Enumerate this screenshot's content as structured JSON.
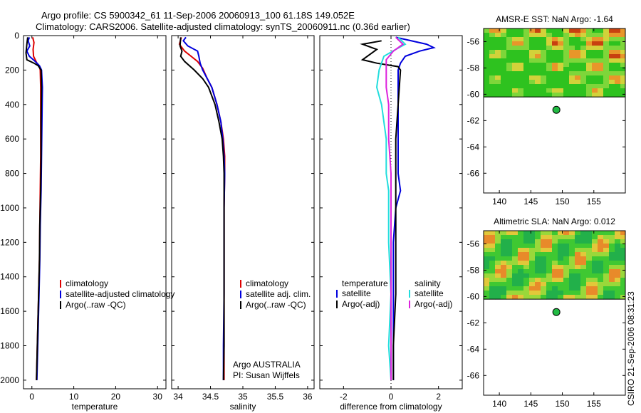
{
  "header": {
    "line1": "Argo profile: CS 5900342_61 11-Sep-2006 20060913_100 61.18S 149.052E",
    "line2": "Climatology: CARS2006. Satellite-adjusted climatology: synTS_20060911.nc (0.36d earlier)"
  },
  "footer_stamp": "CSIRO 21-Sep-2006 08:31:23",
  "colors": {
    "red": "#dd0000",
    "blue": "#0000dd",
    "black": "#000000",
    "cyan": "#22dddd",
    "magenta": "#dd22dd"
  },
  "chart_data": [
    {
      "type": "line",
      "xlabel": "temperature",
      "ylabel": "",
      "xlim": [
        -2,
        32
      ],
      "ylim": [
        2050,
        0
      ],
      "x_ticks": [
        "0",
        "10",
        "20",
        "30"
      ],
      "y_ticks": [
        "0",
        "200",
        "400",
        "600",
        "800",
        "1000",
        "1200",
        "1400",
        "1600",
        "1800",
        "2000"
      ],
      "legend": [
        "climatology",
        "satellite-adjusted climatology",
        "Argo(..raw -QC)"
      ],
      "legend_placement": "lower-right",
      "series": [
        {
          "name": "climatology",
          "color": "red",
          "points": [
            [
              0.2,
              10
            ],
            [
              0.5,
              40
            ],
            [
              0.3,
              80
            ],
            [
              0.4,
              120
            ],
            [
              1.2,
              160
            ],
            [
              1.8,
              180
            ],
            [
              2.0,
              200
            ],
            [
              2.1,
              300
            ],
            [
              2.1,
              500
            ],
            [
              2.1,
              700
            ],
            [
              2.0,
              900
            ],
            [
              1.9,
              1100
            ],
            [
              1.8,
              1300
            ],
            [
              1.6,
              1500
            ],
            [
              1.4,
              1700
            ],
            [
              1.2,
              1900
            ],
            [
              1.1,
              2000
            ]
          ]
        },
        {
          "name": "satellite-adjusted climatology",
          "color": "blue",
          "points": [
            [
              -0.6,
              10
            ],
            [
              -0.9,
              30
            ],
            [
              -0.5,
              60
            ],
            [
              -1.2,
              90
            ],
            [
              -0.6,
              120
            ],
            [
              0.8,
              150
            ],
            [
              1.8,
              175
            ],
            [
              2.3,
              200
            ],
            [
              2.5,
              300
            ],
            [
              2.4,
              500
            ],
            [
              2.3,
              700
            ],
            [
              2.2,
              900
            ],
            [
              2.0,
              1100
            ],
            [
              1.9,
              1300
            ],
            [
              1.7,
              1500
            ],
            [
              1.5,
              1700
            ],
            [
              1.3,
              1900
            ],
            [
              1.2,
              2000
            ]
          ]
        },
        {
          "name": "Argo(..raw -QC)",
          "color": "black",
          "points": [
            [
              -1.0,
              10
            ],
            [
              -1.2,
              50
            ],
            [
              -1.4,
              100
            ],
            [
              -1.2,
              140
            ],
            [
              0.5,
              160
            ],
            [
              1.5,
              175
            ],
            [
              2.2,
              200
            ],
            [
              2.3,
              300
            ],
            [
              2.2,
              500
            ],
            [
              2.2,
              700
            ],
            [
              2.1,
              900
            ],
            [
              1.9,
              1100
            ],
            [
              1.8,
              1300
            ],
            [
              1.6,
              1500
            ],
            [
              1.4,
              1700
            ],
            [
              1.2,
              1900
            ],
            [
              1.1,
              2000
            ]
          ]
        }
      ]
    },
    {
      "type": "line",
      "xlabel": "salinity",
      "xlim": [
        33.9,
        36.1
      ],
      "ylim": [
        2050,
        0
      ],
      "x_ticks": [
        "34",
        "34.5",
        "35",
        "35.5",
        "36"
      ],
      "legend": [
        "climatology",
        "satellite adj. clim.",
        "Argo(..raw -QC)"
      ],
      "legend_placement": "lower-right",
      "annotation": [
        "Argo AUSTRALIA",
        "PI: Susan Wijffels"
      ],
      "series": [
        {
          "name": "climatology",
          "color": "red",
          "points": [
            [
              34.05,
              10
            ],
            [
              34.02,
              50
            ],
            [
              34.1,
              90
            ],
            [
              34.2,
              120
            ],
            [
              34.3,
              150
            ],
            [
              34.38,
              190
            ],
            [
              34.45,
              250
            ],
            [
              34.52,
              300
            ],
            [
              34.6,
              400
            ],
            [
              34.66,
              500
            ],
            [
              34.7,
              600
            ],
            [
              34.72,
              700
            ],
            [
              34.72,
              800
            ],
            [
              34.71,
              1000
            ],
            [
              34.71,
              1500
            ],
            [
              34.71,
              1800
            ],
            [
              34.71,
              2000
            ]
          ]
        },
        {
          "name": "satellite adj. clim.",
          "color": "blue",
          "points": [
            [
              34.12,
              10
            ],
            [
              34.08,
              30
            ],
            [
              34.15,
              60
            ],
            [
              34.3,
              90
            ],
            [
              34.32,
              120
            ],
            [
              34.34,
              160
            ],
            [
              34.38,
              200
            ],
            [
              34.45,
              250
            ],
            [
              34.52,
              300
            ],
            [
              34.6,
              400
            ],
            [
              34.66,
              500
            ],
            [
              34.69,
              600
            ],
            [
              34.71,
              700
            ],
            [
              34.72,
              800
            ],
            [
              34.71,
              1000
            ],
            [
              34.71,
              1500
            ],
            [
              34.7,
              1800
            ],
            [
              34.7,
              2000
            ]
          ]
        },
        {
          "name": "Argo(..raw -QC)",
          "color": "black",
          "points": [
            [
              34.04,
              10
            ],
            [
              34.03,
              60
            ],
            [
              34.06,
              90
            ],
            [
              34.04,
              120
            ],
            [
              34.1,
              150
            ],
            [
              34.25,
              200
            ],
            [
              34.38,
              250
            ],
            [
              34.47,
              300
            ],
            [
              34.57,
              400
            ],
            [
              34.63,
              500
            ],
            [
              34.68,
              600
            ],
            [
              34.7,
              700
            ],
            [
              34.71,
              800
            ],
            [
              34.71,
              1000
            ],
            [
              34.71,
              1500
            ],
            [
              34.71,
              1800
            ],
            [
              34.7,
              2000
            ]
          ]
        }
      ]
    },
    {
      "type": "line",
      "xlabel": "difference from climatology",
      "xlim": [
        -3,
        3
      ],
      "ylim": [
        2050,
        0
      ],
      "x_ticks": [
        "-2",
        "0",
        "2"
      ],
      "legend": [
        "temperature",
        "satellite",
        "Argo(-adj)",
        "salinity",
        "satellite",
        "Argo(-adj)"
      ],
      "legend_placement": "lower-center",
      "series": [
        {
          "name": "temperature satellite",
          "color": "blue",
          "points": [
            [
              0.2,
              10
            ],
            [
              1.5,
              50
            ],
            [
              1.8,
              70
            ],
            [
              1.2,
              90
            ],
            [
              0.6,
              120
            ],
            [
              0.4,
              160
            ],
            [
              0.3,
              200
            ],
            [
              0.3,
              400
            ],
            [
              0.3,
              600
            ],
            [
              0.3,
              800
            ],
            [
              0.4,
              900
            ],
            [
              0.2,
              1000
            ],
            [
              0.1,
              1200
            ],
            [
              0.1,
              1500
            ],
            [
              0.1,
              1800
            ],
            [
              0.1,
              2000
            ]
          ]
        },
        {
          "name": "temperature Argo(-adj)",
          "color": "black",
          "points": [
            [
              -0.4,
              30
            ],
            [
              -1.2,
              50
            ],
            [
              -0.6,
              80
            ],
            [
              -1.2,
              140
            ],
            [
              -0.6,
              160
            ],
            [
              0.3,
              180
            ],
            [
              0.4,
              200
            ],
            [
              0.3,
              400
            ],
            [
              0.2,
              600
            ],
            [
              0.2,
              800
            ],
            [
              0.2,
              1000
            ],
            [
              0.2,
              1200
            ],
            [
              0.2,
              1500
            ],
            [
              0.1,
              1800
            ],
            [
              0.1,
              2000
            ]
          ]
        },
        {
          "name": "salinity satellite",
          "color": "cyan",
          "points": [
            [
              0.3,
              10
            ],
            [
              0.6,
              50
            ],
            [
              0.2,
              80
            ],
            [
              -0.3,
              120
            ],
            [
              -0.5,
              200
            ],
            [
              -0.6,
              300
            ],
            [
              -0.4,
              400
            ],
            [
              -0.2,
              600
            ],
            [
              -0.2,
              800
            ],
            [
              -0.1,
              900
            ],
            [
              -0.1,
              1200
            ],
            [
              0.0,
              1500
            ],
            [
              -0.1,
              1800
            ],
            [
              0.0,
              2000
            ]
          ]
        },
        {
          "name": "salinity Argo(-adj)",
          "color": "magenta",
          "points": [
            [
              0.2,
              10
            ],
            [
              0.5,
              50
            ],
            [
              0.1,
              90
            ],
            [
              -0.2,
              140
            ],
            [
              -0.2,
              200
            ],
            [
              -0.2,
              300
            ],
            [
              -0.1,
              400
            ],
            [
              -0.1,
              600
            ],
            [
              0.0,
              800
            ],
            [
              0.0,
              1000
            ],
            [
              0.0,
              1500
            ],
            [
              0.0,
              2000
            ]
          ]
        }
      ]
    },
    {
      "type": "heatmap",
      "title": "AMSR-E SST: NaN Argo: -1.64",
      "xlim": [
        137.5,
        160
      ],
      "ylim": [
        -67.5,
        -55
      ],
      "x_ticks": [
        "140",
        "145",
        "150",
        "155"
      ],
      "y_ticks": [
        "-56",
        "-58",
        "-60",
        "-62",
        "-64",
        "-66"
      ],
      "data_lat_range": [
        -60.2,
        -55
      ],
      "marker": [
        149.052,
        -61.18
      ]
    },
    {
      "type": "heatmap",
      "title": "Altimetric SLA: NaN Argo: 0.012",
      "xlim": [
        137.5,
        160
      ],
      "ylim": [
        -67.5,
        -55
      ],
      "x_ticks": [
        "140",
        "145",
        "150",
        "155"
      ],
      "y_ticks": [
        "-56",
        "-58",
        "-60",
        "-62",
        "-64",
        "-66"
      ],
      "data_lat_range": [
        -60.2,
        -55
      ],
      "marker": [
        149.052,
        -61.18
      ]
    }
  ]
}
